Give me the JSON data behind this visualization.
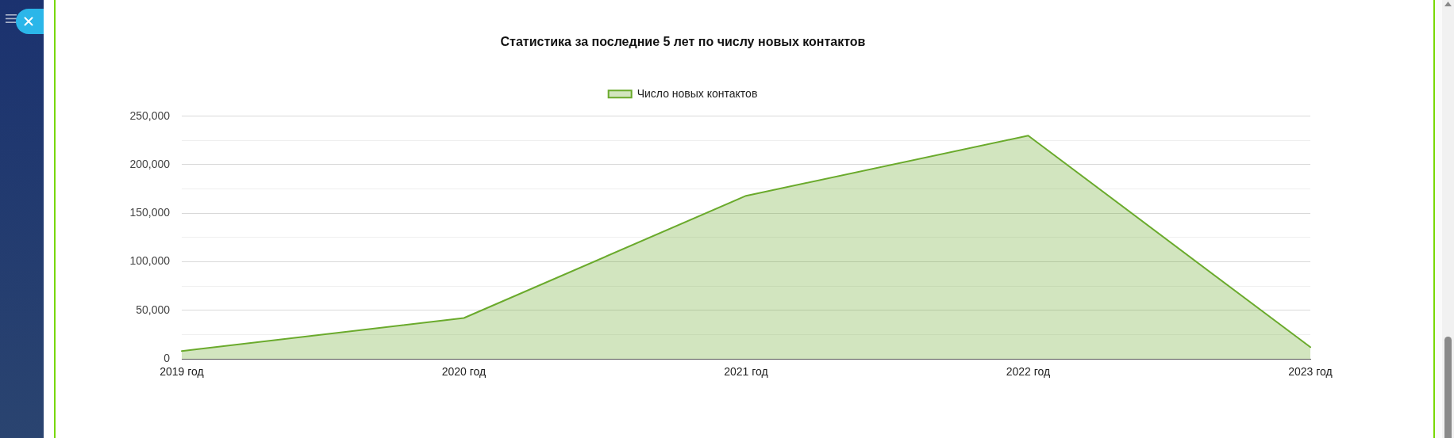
{
  "chart_data": {
    "type": "area",
    "title": "Статистика за последние 5 лет по числу новых контактов",
    "categories": [
      "2019 год",
      "2020 год",
      "2021 год",
      "2022 год",
      "2023 год"
    ],
    "series": [
      {
        "name": "Число новых контактов",
        "color": "#6aaa2c",
        "values": [
          8000,
          42000,
          168000,
          230000,
          12000
        ]
      }
    ],
    "ylim": [
      0,
      250000
    ],
    "yticks": [
      0,
      {
        "value": 25000,
        "label": null
      },
      {
        "value": 50000,
        "label": "50,000"
      },
      {
        "value": 75000,
        "label": null
      },
      {
        "value": 100000,
        "label": "100,000"
      },
      {
        "value": 125000,
        "label": null
      },
      {
        "value": 150000,
        "label": "150,000"
      },
      {
        "value": 175000,
        "label": null
      },
      {
        "value": 200000,
        "label": "200,000"
      },
      {
        "value": 225000,
        "label": null
      },
      {
        "value": 250000,
        "label": "250,000"
      }
    ],
    "grid": "y",
    "legend": "top"
  }
}
